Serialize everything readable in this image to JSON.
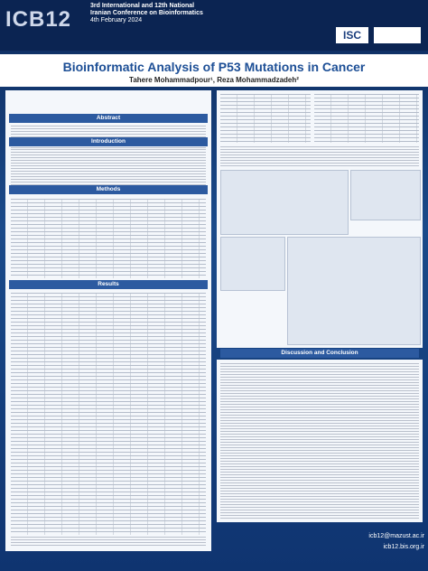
{
  "header": {
    "logo": "ICB12",
    "conference": [
      "3rd International and 12th National",
      "Iranian Conference on Bioinformatics"
    ],
    "date": "4th February 2024",
    "partner": "ISC"
  },
  "title": "Bioinformatic Analysis of P53 Mutations in Cancer",
  "authors": "Tahere Mohammadpour¹, Reza Mohammadzadeh²",
  "sections": [
    "Abstract",
    "Introduction",
    "Methods",
    "Results",
    "Discussion and Conclusion"
  ],
  "footer": [
    "icb12@mazust.ac.ir",
    "icb12.bis.org.ir"
  ]
}
